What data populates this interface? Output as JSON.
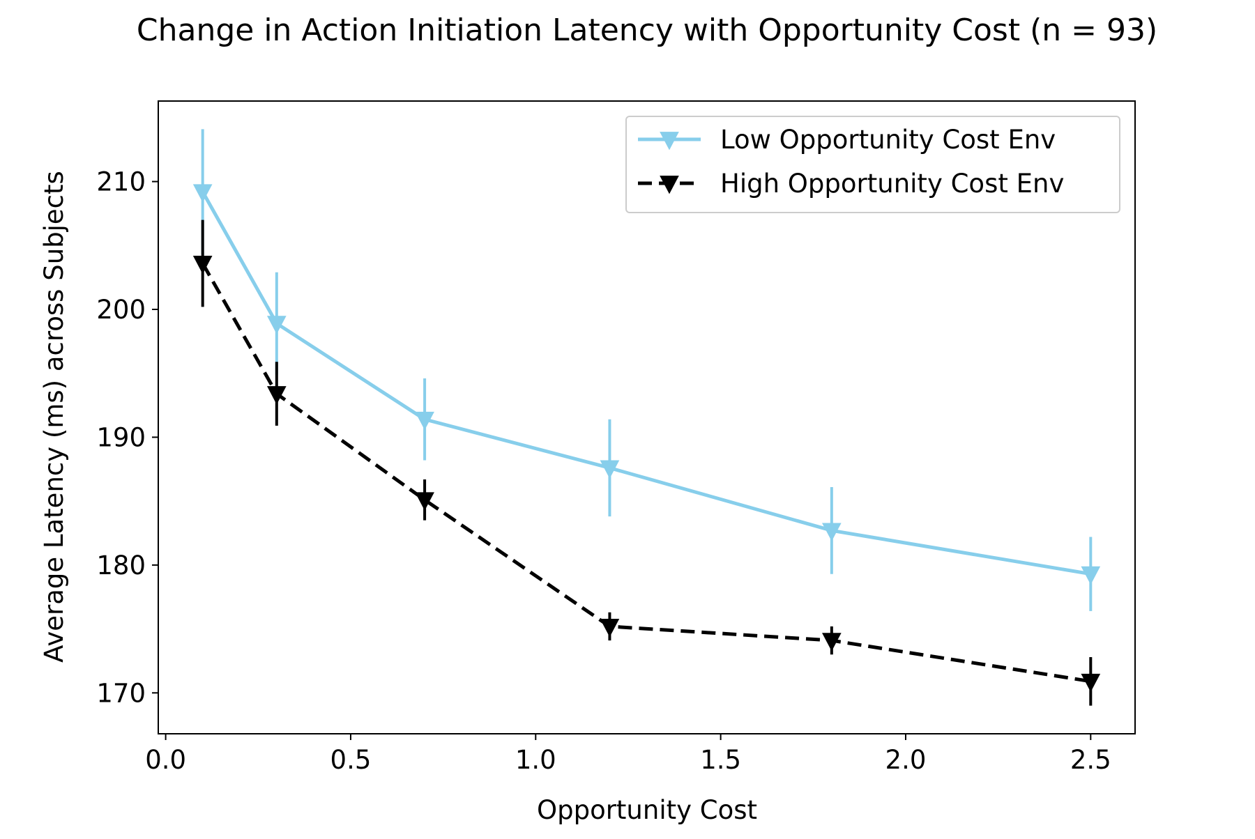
{
  "chart_data": {
    "type": "line",
    "title": "Change in Action Initiation Latency with Opportunity Cost (n = 93)",
    "xlabel": "Opportunity Cost",
    "ylabel": "Average Latency (ms) across Subjects",
    "xlim": [
      -0.02,
      2.62
    ],
    "ylim": [
      166.8,
      216.3
    ],
    "xticks": [
      0.0,
      0.5,
      1.0,
      1.5,
      2.0,
      2.5
    ],
    "xtick_labels": [
      "0.0",
      "0.5",
      "1.0",
      "1.5",
      "2.0",
      "2.5"
    ],
    "yticks": [
      170,
      180,
      190,
      200,
      210
    ],
    "ytick_labels": [
      "170",
      "180",
      "190",
      "200",
      "210"
    ],
    "grid": false,
    "legend_position": "top-right",
    "x": [
      0.1,
      0.3,
      0.7,
      1.2,
      1.8,
      2.5
    ],
    "series": [
      {
        "name": "Low Opportunity Cost Env",
        "color": "#87ceeb",
        "line_style": "solid",
        "marker": "triangle-down",
        "values": [
          209.2,
          198.9,
          191.4,
          187.6,
          182.7,
          179.3
        ],
        "errors": [
          4.9,
          4.0,
          3.2,
          3.8,
          3.4,
          2.9
        ]
      },
      {
        "name": "High Opportunity Cost Env",
        "color": "#000000",
        "line_style": "dashed",
        "marker": "triangle-down",
        "values": [
          203.6,
          193.4,
          185.1,
          175.2,
          174.1,
          170.9
        ],
        "errors": [
          3.4,
          2.5,
          1.6,
          1.1,
          1.1,
          1.9
        ]
      }
    ]
  }
}
